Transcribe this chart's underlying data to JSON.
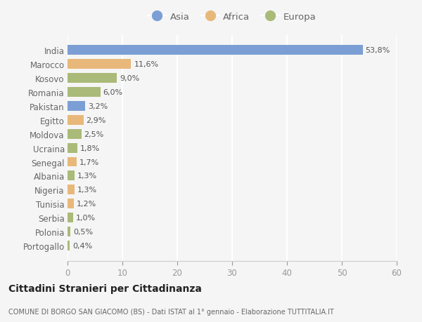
{
  "countries": [
    "India",
    "Marocco",
    "Kosovo",
    "Romania",
    "Pakistan",
    "Egitto",
    "Moldova",
    "Ucraina",
    "Senegal",
    "Albania",
    "Nigeria",
    "Tunisia",
    "Serbia",
    "Polonia",
    "Portogallo"
  ],
  "values": [
    53.8,
    11.6,
    9.0,
    6.0,
    3.2,
    2.9,
    2.5,
    1.8,
    1.7,
    1.3,
    1.3,
    1.2,
    1.0,
    0.5,
    0.4
  ],
  "labels": [
    "53,8%",
    "11,6%",
    "9,0%",
    "6,0%",
    "3,2%",
    "2,9%",
    "2,5%",
    "1,8%",
    "1,7%",
    "1,3%",
    "1,3%",
    "1,2%",
    "1,0%",
    "0,5%",
    "0,4%"
  ],
  "continent": [
    "Asia",
    "Africa",
    "Europa",
    "Europa",
    "Asia",
    "Africa",
    "Europa",
    "Europa",
    "Africa",
    "Europa",
    "Africa",
    "Africa",
    "Europa",
    "Europa",
    "Europa"
  ],
  "colors": {
    "Asia": "#7b9fd4",
    "Africa": "#e8b87a",
    "Europa": "#aaba78"
  },
  "xlim": [
    0,
    60
  ],
  "xticks": [
    0,
    10,
    20,
    30,
    40,
    50,
    60
  ],
  "title": "Cittadini Stranieri per Cittadinanza",
  "subtitle": "COMUNE DI BORGO SAN GIACOMO (BS) - Dati ISTAT al 1° gennaio - Elaborazione TUTTITALIA.IT",
  "bg_color": "#f5f5f5",
  "grid_color": "#ffffff",
  "bar_height": 0.7,
  "legend_order": [
    "Asia",
    "Africa",
    "Europa"
  ]
}
